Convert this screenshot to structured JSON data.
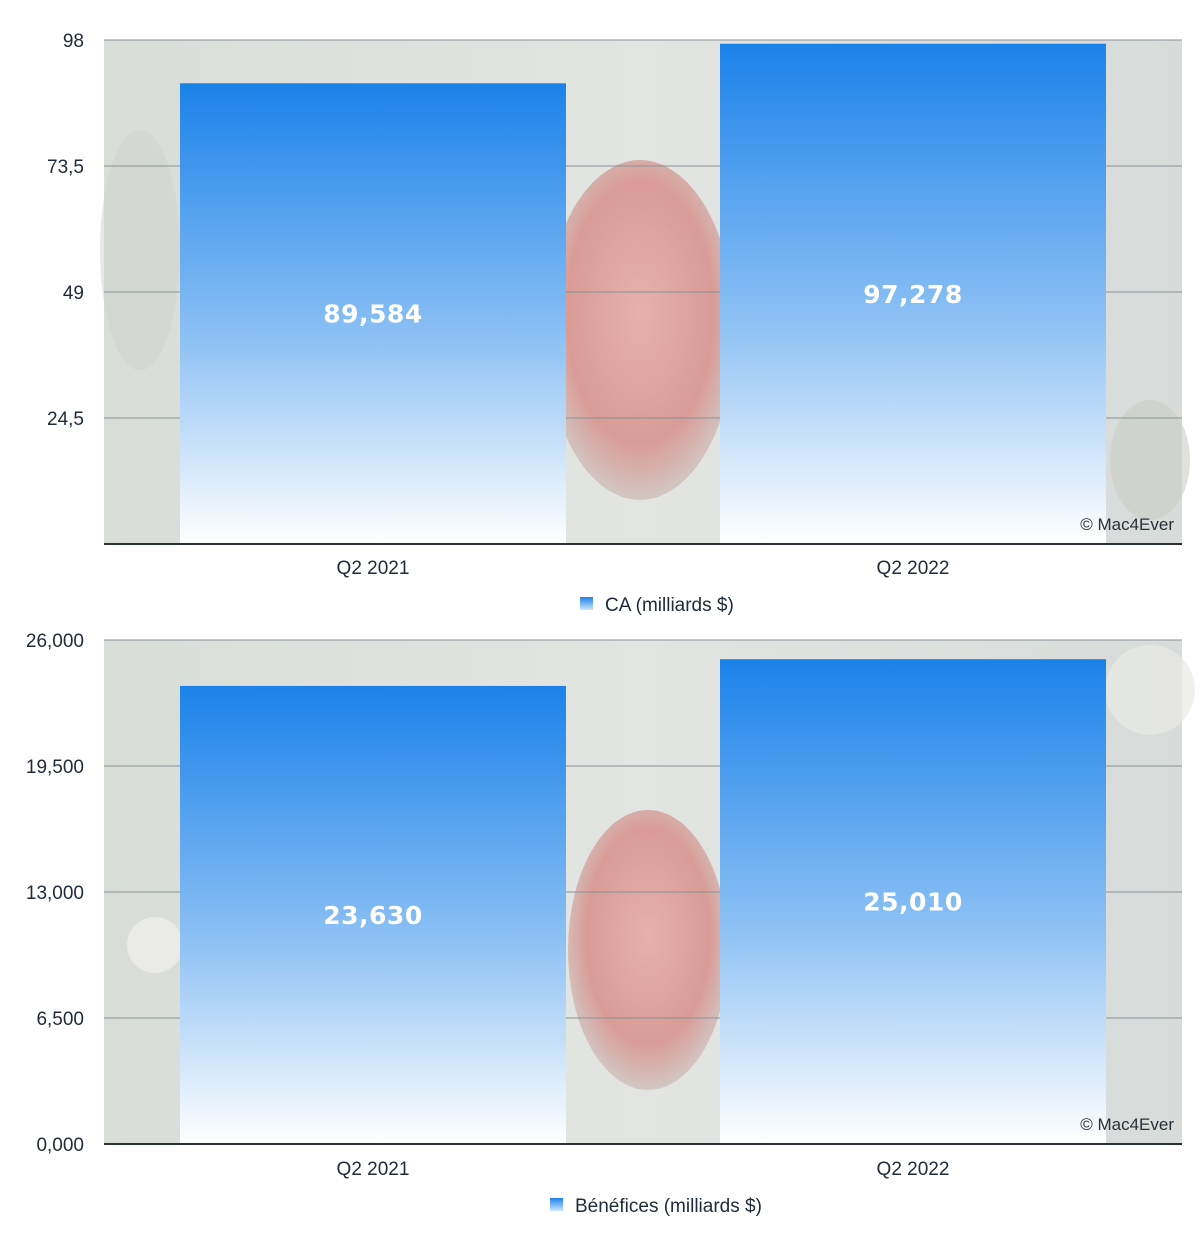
{
  "watermark": "© Mac4Ever",
  "colors": {
    "bar_top": "#1b82ea",
    "bar_bottom": "#ffffff",
    "grid": "#8a9096",
    "axis": "#2a2f38",
    "plot_bg": "#dfe3e0"
  },
  "chart_data": [
    {
      "type": "bar",
      "categories": [
        "Q2 2021",
        "Q2 2022"
      ],
      "series": [
        {
          "name": "CA (milliards $)",
          "values": [
            89.584,
            97.278
          ],
          "labels": [
            "89,584",
            "97,278"
          ]
        }
      ],
      "yticks": [
        "98",
        "73,5",
        "49",
        "24,5"
      ],
      "ytick_values": [
        98,
        73.5,
        49,
        24.5
      ],
      "ylim": [
        0,
        98
      ],
      "grid": true,
      "legend": "bottom-center"
    },
    {
      "type": "bar",
      "categories": [
        "Q2 2021",
        "Q2 2022"
      ],
      "series": [
        {
          "name": "Bénéfices (milliards $)",
          "values": [
            23.63,
            25.01
          ],
          "labels": [
            "23,630",
            "25,010"
          ]
        }
      ],
      "yticks": [
        "26,000",
        "19,500",
        "13,000",
        "6,500",
        "0,000"
      ],
      "ytick_values": [
        26,
        19.5,
        13,
        6.5,
        0
      ],
      "ylim": [
        0,
        26
      ],
      "grid": true,
      "legend": "bottom-center"
    }
  ]
}
